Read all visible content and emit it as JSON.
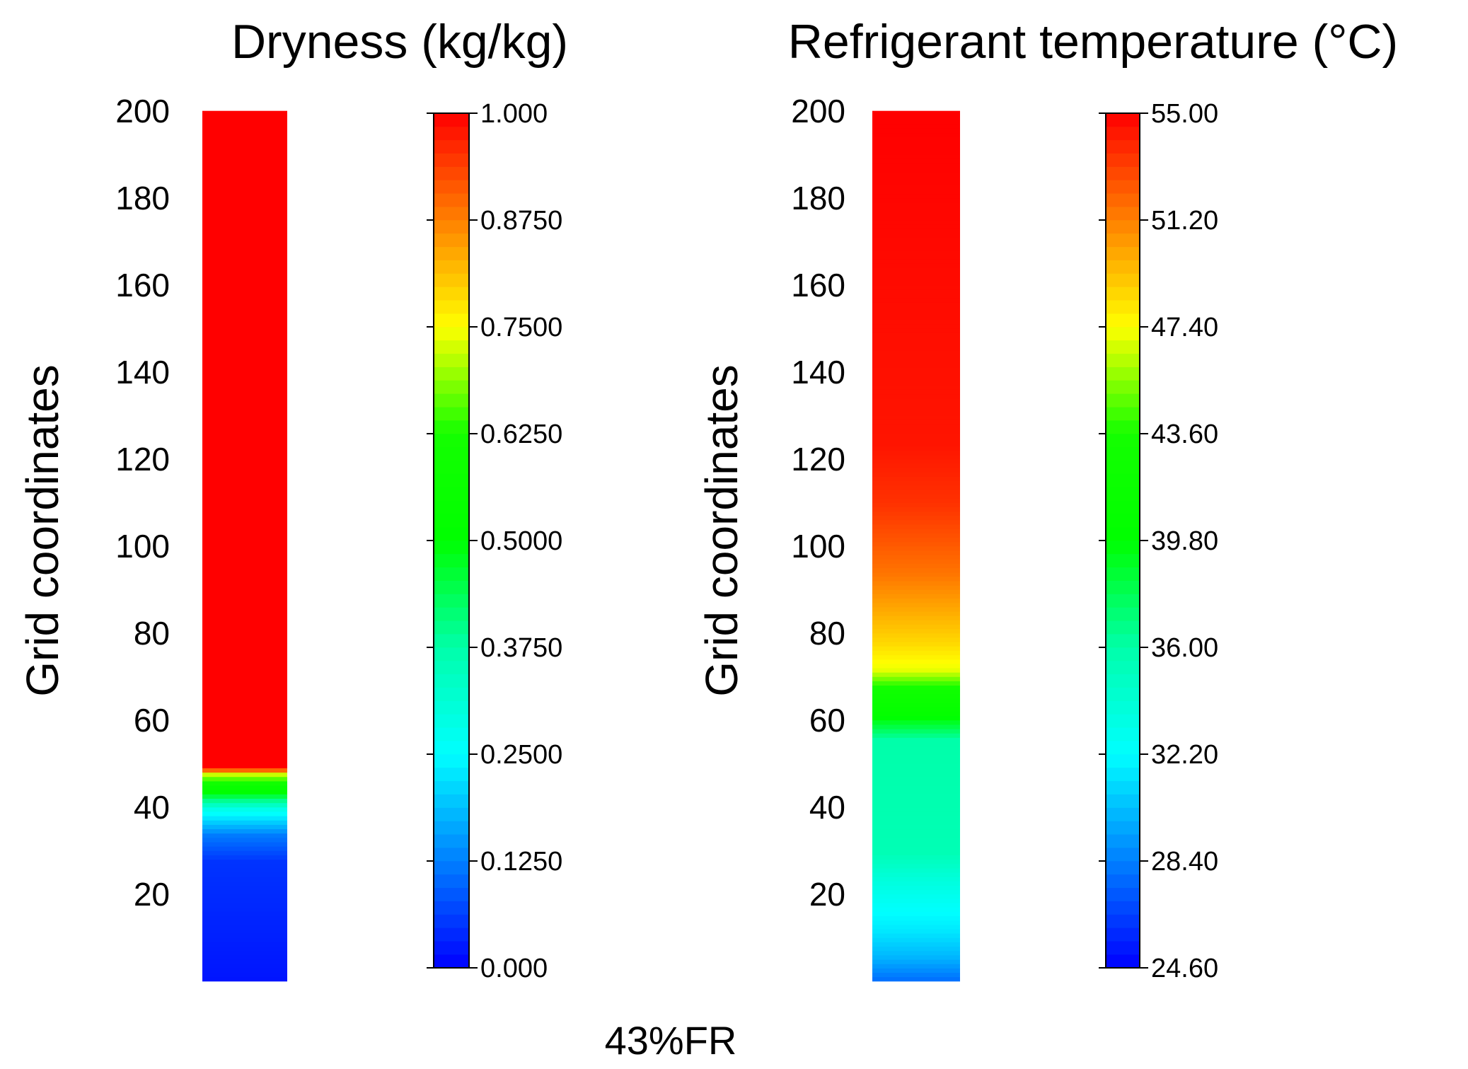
{
  "figure": {
    "caption": "43%FR"
  },
  "chart_data": [
    {
      "type": "heatmap",
      "title": "Dryness (kg/kg)",
      "ylabel": "Grid coordinates",
      "yticks": [
        "20",
        "40",
        "60",
        "80",
        "100",
        "120",
        "140",
        "160",
        "180",
        "200"
      ],
      "ylim": [
        0,
        200
      ],
      "colorbar": {
        "range": [
          0.0,
          1.0
        ],
        "ticks": [
          "0.000",
          "0.1250",
          "0.2500",
          "0.3750",
          "0.5000",
          "0.6250",
          "0.7500",
          "0.8750",
          "1.000"
        ],
        "tick_values": [
          0.0,
          0.125,
          0.25,
          0.375,
          0.5,
          0.625,
          0.75,
          0.875,
          1.0
        ]
      },
      "profile": {
        "grid": [
          1,
          28,
          34,
          40,
          43,
          46,
          48,
          49,
          50,
          200
        ],
        "values": [
          0.02,
          0.05,
          0.12,
          0.28,
          0.45,
          0.6,
          0.72,
          0.9,
          1.0,
          1.0
        ]
      }
    },
    {
      "type": "heatmap",
      "title": "Refrigerant temperature (°C)",
      "ylabel": "Grid coordinates",
      "yticks": [
        "20",
        "40",
        "60",
        "80",
        "100",
        "120",
        "140",
        "160",
        "180",
        "200"
      ],
      "ylim": [
        0,
        200
      ],
      "colorbar": {
        "range": [
          24.6,
          55.0
        ],
        "ticks": [
          "24.60",
          "28.40",
          "32.20",
          "36.00",
          "39.80",
          "43.60",
          "47.40",
          "51.20",
          "55.00"
        ],
        "tick_values": [
          24.6,
          28.4,
          32.2,
          36.0,
          39.8,
          43.6,
          47.4,
          51.2,
          55.0
        ]
      },
      "profile": {
        "grid": [
          1,
          6,
          12,
          18,
          24,
          30,
          56,
          62,
          67,
          72,
          78,
          86,
          94,
          102,
          110,
          124,
          200
        ],
        "values": [
          28.0,
          30.0,
          31.5,
          32.5,
          33.8,
          35.5,
          36.0,
          40.5,
          42.5,
          47.0,
          48.5,
          50.0,
          51.5,
          52.5,
          53.5,
          54.4,
          55.0
        ]
      }
    }
  ]
}
